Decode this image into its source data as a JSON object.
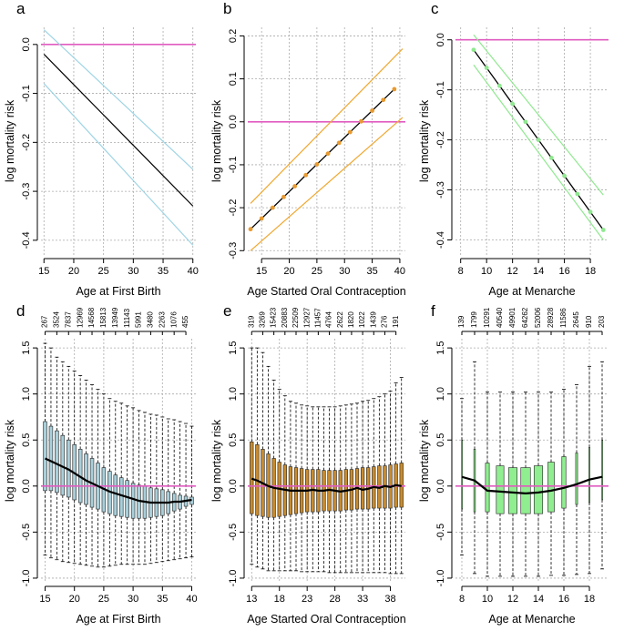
{
  "chart_data": [
    {
      "type": "line",
      "panel": "a",
      "xlabel": "Age at First Birth",
      "ylabel": "log mortality risk",
      "xlim": [
        14.5,
        40.5
      ],
      "ylim": [
        -0.43,
        0.035
      ],
      "xticks": [
        15,
        20,
        25,
        30,
        35,
        40
      ],
      "yticks": [
        {
          "value": 0,
          "label": "0.0"
        },
        -0.1,
        -0.2,
        -0.3,
        -0.4
      ],
      "grid": true,
      "hline": 0,
      "hline_color": "#e05cc0",
      "series": [
        {
          "x": [
            15,
            20,
            25,
            30,
            35,
            40
          ],
          "values": [
            0.03,
            -0.027,
            -0.084,
            -0.141,
            -0.198,
            -0.255
          ],
          "color": "#9fd4e4"
        },
        {
          "x": [
            15,
            20,
            25,
            30,
            35,
            40
          ],
          "values": [
            -0.08,
            -0.146,
            -0.212,
            -0.278,
            -0.344,
            -0.41
          ],
          "color": "#9fd4e4"
        },
        {
          "x": [
            15,
            20,
            25,
            30,
            35,
            40
          ],
          "values": [
            -0.02,
            -0.082,
            -0.144,
            -0.206,
            -0.268,
            -0.33
          ],
          "color": "#000000"
        }
      ]
    },
    {
      "type": "line",
      "panel": "b",
      "xlabel": "Age Started Oral Contraception",
      "ylabel": "log mortality risk",
      "xlim": [
        12.5,
        41
      ],
      "ylim": [
        -0.31,
        0.22
      ],
      "xticks": [
        15,
        20,
        25,
        30,
        35,
        40
      ],
      "yticks": [
        {
          "value": 0.2,
          "label": "0.2"
        },
        0.1,
        {
          "value": 0,
          "label": "0.0"
        },
        -0.1,
        -0.2,
        -0.3
      ],
      "grid": true,
      "hline": 0,
      "hline_color": "#e05cc0",
      "series": [
        {
          "x": [
            13,
            40.5
          ],
          "values": [
            -0.19,
            0.17
          ],
          "color": "#f0a830"
        },
        {
          "x": [
            13,
            40.5
          ],
          "values": [
            -0.3,
            0.01
          ],
          "color": "#f0a830"
        },
        {
          "x": [
            13,
            15,
            17,
            19,
            21,
            23,
            25,
            27,
            29,
            31,
            33,
            35,
            37,
            39
          ],
          "values": [
            -0.25,
            -0.225,
            -0.2,
            -0.175,
            -0.15,
            -0.124,
            -0.099,
            -0.074,
            -0.049,
            -0.024,
            0.001,
            0.026,
            0.051,
            0.076
          ],
          "color": "#000000",
          "marker_color": "#e89a30"
        }
      ]
    },
    {
      "type": "line",
      "panel": "c",
      "xlabel": "Age at Menarche",
      "ylabel": "log mortality risk",
      "xlim": [
        7.6,
        19.4
      ],
      "ylim": [
        -0.43,
        0.025
      ],
      "xticks": [
        8,
        10,
        12,
        14,
        16,
        18
      ],
      "yticks": [
        {
          "value": 0,
          "label": "0.0"
        },
        -0.1,
        -0.2,
        -0.3,
        -0.4
      ],
      "grid": true,
      "hline": 0,
      "hline_color": "#e05cc0",
      "series": [
        {
          "x": [
            9,
            19
          ],
          "values": [
            0.01,
            -0.31
          ],
          "color": "#90e890"
        },
        {
          "x": [
            9,
            19
          ],
          "values": [
            -0.05,
            -0.4
          ],
          "color": "#90e890"
        },
        {
          "x": [
            9,
            10,
            11,
            12,
            13,
            14,
            15,
            16,
            17,
            18,
            19
          ],
          "values": [
            -0.02,
            -0.056,
            -0.092,
            -0.128,
            -0.164,
            -0.2,
            -0.236,
            -0.272,
            -0.308,
            -0.344,
            -0.38
          ],
          "color": "#000000",
          "marker_color": "#90e890"
        }
      ]
    },
    {
      "type": "box",
      "panel": "d",
      "xlabel": "Age at First Birth",
      "ylabel": "log mortality risk",
      "xlim": [
        14.3,
        40.7
      ],
      "ylim": [
        -1.05,
        1.6
      ],
      "xticks": [
        15,
        20,
        25,
        30,
        35,
        40
      ],
      "yticks": [
        {
          "value": -1,
          "label": "-1.0"
        },
        -0.5,
        {
          "value": 0,
          "label": "0.0"
        },
        0.5,
        {
          "value": 1,
          "label": "1.0"
        },
        1.5
      ],
      "grid": true,
      "hline": 0,
      "hline_color": "#e05cc0",
      "color": "#a9cfda",
      "x": [
        15,
        16,
        17,
        18,
        19,
        20,
        21,
        22,
        23,
        24,
        25,
        26,
        27,
        28,
        29,
        30,
        31,
        32,
        33,
        34,
        35,
        36,
        37,
        38,
        39,
        40
      ],
      "median": [
        0.3,
        0.27,
        0.24,
        0.21,
        0.18,
        0.14,
        0.1,
        0.06,
        0.03,
        0.0,
        -0.03,
        -0.06,
        -0.08,
        -0.1,
        -0.12,
        -0.14,
        -0.16,
        -0.17,
        -0.18,
        -0.18,
        -0.18,
        -0.18,
        -0.17,
        -0.17,
        -0.16,
        -0.15
      ],
      "q1": [
        -0.05,
        -0.05,
        -0.07,
        -0.1,
        -0.12,
        -0.15,
        -0.18,
        -0.2,
        -0.23,
        -0.25,
        -0.28,
        -0.3,
        -0.32,
        -0.33,
        -0.34,
        -0.35,
        -0.35,
        -0.35,
        -0.34,
        -0.33,
        -0.32,
        -0.3,
        -0.27,
        -0.25,
        -0.22,
        -0.2
      ],
      "q3": [
        0.7,
        0.65,
        0.6,
        0.55,
        0.5,
        0.45,
        0.4,
        0.35,
        0.3,
        0.25,
        0.2,
        0.16,
        0.12,
        0.09,
        0.06,
        0.03,
        0.01,
        0.0,
        -0.02,
        -0.03,
        -0.04,
        -0.06,
        -0.08,
        -0.1,
        -0.11,
        -0.12
      ],
      "whisker_low": [
        -0.75,
        -0.78,
        -0.8,
        -0.82,
        -0.83,
        -0.84,
        -0.85,
        -0.86,
        -0.87,
        -0.88,
        -0.88,
        -0.87,
        -0.86,
        -0.85,
        -0.85,
        -0.85,
        -0.85,
        -0.85,
        -0.84,
        -0.83,
        -0.82,
        -0.81,
        -0.8,
        -0.79,
        -0.78,
        -0.77
      ],
      "whisker_high": [
        1.55,
        1.5,
        1.4,
        1.35,
        1.3,
        1.25,
        1.2,
        1.15,
        1.1,
        1.05,
        1.0,
        0.95,
        0.92,
        0.9,
        0.87,
        0.85,
        0.82,
        0.8,
        0.78,
        0.77,
        0.75,
        0.73,
        0.72,
        0.7,
        0.68,
        0.65
      ],
      "n_x": [
        15,
        17,
        19,
        21,
        23,
        25,
        27,
        29,
        31,
        33,
        35,
        37,
        39
      ],
      "n": [
        267,
        3524,
        7837,
        12969,
        14568,
        15813,
        13949,
        11143,
        5991,
        3480,
        2263,
        1076,
        455
      ]
    },
    {
      "type": "box",
      "panel": "e",
      "xlabel": "Age Started Oral Contraception",
      "ylabel": "log mortality risk",
      "xlim": [
        12.3,
        40.7
      ],
      "ylim": [
        -1.05,
        1.6
      ],
      "xticks": [
        13,
        18,
        23,
        28,
        33,
        38
      ],
      "yticks": [
        {
          "value": -1,
          "label": "-1.0"
        },
        -0.5,
        {
          "value": 0,
          "label": "0.0"
        },
        0.5,
        {
          "value": 1,
          "label": "1.0"
        },
        1.5
      ],
      "grid": true,
      "hline": 0,
      "hline_color": "#e05cc0",
      "color": "#c98b2e",
      "x": [
        13,
        14,
        15,
        16,
        17,
        18,
        19,
        20,
        21,
        22,
        23,
        24,
        25,
        26,
        27,
        28,
        29,
        30,
        31,
        32,
        33,
        34,
        35,
        36,
        37,
        38,
        39,
        40
      ],
      "median": [
        0.08,
        0.06,
        0.03,
        0.0,
        -0.02,
        -0.03,
        -0.04,
        -0.05,
        -0.05,
        -0.05,
        -0.05,
        -0.04,
        -0.05,
        -0.05,
        -0.04,
        -0.05,
        -0.06,
        -0.05,
        -0.04,
        -0.02,
        -0.04,
        -0.03,
        -0.01,
        -0.02,
        0.0,
        -0.01,
        0.01,
        0.0
      ],
      "q1": [
        -0.3,
        -0.32,
        -0.33,
        -0.34,
        -0.34,
        -0.33,
        -0.32,
        -0.31,
        -0.3,
        -0.29,
        -0.28,
        -0.28,
        -0.28,
        -0.27,
        -0.27,
        -0.27,
        -0.27,
        -0.26,
        -0.26,
        -0.25,
        -0.25,
        -0.25,
        -0.24,
        -0.24,
        -0.24,
        -0.24,
        -0.23,
        -0.23
      ],
      "q3": [
        0.48,
        0.45,
        0.4,
        0.35,
        0.3,
        0.26,
        0.23,
        0.21,
        0.2,
        0.19,
        0.18,
        0.18,
        0.18,
        0.17,
        0.17,
        0.17,
        0.17,
        0.18,
        0.18,
        0.19,
        0.2,
        0.2,
        0.21,
        0.22,
        0.22,
        0.23,
        0.24,
        0.25
      ],
      "whisker_low": [
        -0.85,
        -0.88,
        -0.9,
        -0.92,
        -0.92,
        -0.92,
        -0.92,
        -0.92,
        -0.92,
        -0.93,
        -0.93,
        -0.93,
        -0.93,
        -0.93,
        -0.94,
        -0.94,
        -0.94,
        -0.94,
        -0.94,
        -0.94,
        -0.94,
        -0.94,
        -0.94,
        -0.94,
        -0.94,
        -0.95,
        -0.95,
        -0.95
      ],
      "whisker_high": [
        1.5,
        1.5,
        1.45,
        1.3,
        1.15,
        1.05,
        0.98,
        0.92,
        0.9,
        0.88,
        0.87,
        0.86,
        0.86,
        0.86,
        0.86,
        0.86,
        0.87,
        0.88,
        0.89,
        0.9,
        0.92,
        0.93,
        0.95,
        0.97,
        1.0,
        1.03,
        1.12,
        1.18
      ],
      "n_x": [
        13,
        15,
        17,
        19,
        21,
        23,
        25,
        27,
        29,
        31,
        33,
        35,
        37,
        39
      ],
      "n": [
        319,
        3269,
        15423,
        20883,
        22509,
        12927,
        11457,
        4764,
        2622,
        1820,
        1022,
        1439,
        276,
        191
      ]
    },
    {
      "type": "box",
      "panel": "f",
      "xlabel": "Age at Menarche",
      "ylabel": "log mortality risk",
      "xlim": [
        7.5,
        19.5
      ],
      "ylim": [
        -1.05,
        1.6
      ],
      "xticks": [
        8,
        10,
        12,
        14,
        16,
        18
      ],
      "yticks": [
        {
          "value": -1,
          "label": "-1.0"
        },
        -0.5,
        {
          "value": 0,
          "label": "0.0"
        },
        0.5,
        {
          "value": 1,
          "label": "1.0"
        },
        1.5
      ],
      "grid": true,
      "hline": 0,
      "hline_color": "#e05cc0",
      "color": "#90ee90",
      "x": [
        8,
        9,
        10,
        11,
        12,
        13,
        14,
        15,
        16,
        17,
        18,
        19
      ],
      "median": [
        0.1,
        0.06,
        -0.05,
        -0.06,
        -0.07,
        -0.08,
        -0.07,
        -0.05,
        -0.02,
        0.02,
        0.07,
        0.1
      ],
      "q1": [
        -0.25,
        -0.28,
        -0.28,
        -0.3,
        -0.3,
        -0.3,
        -0.3,
        -0.28,
        -0.24,
        -0.2,
        -0.18,
        -0.15
      ],
      "q3": [
        0.5,
        0.4,
        0.25,
        0.22,
        0.2,
        0.2,
        0.22,
        0.26,
        0.32,
        0.36,
        0.42,
        0.5
      ],
      "whisker_low": [
        -0.75,
        -0.95,
        -0.98,
        -0.98,
        -0.98,
        -0.98,
        -0.98,
        -0.97,
        -0.97,
        -0.96,
        -0.95,
        -0.9
      ],
      "whisker_high": [
        0.95,
        1.35,
        1.02,
        1.02,
        1.02,
        1.02,
        1.02,
        1.02,
        1.05,
        1.1,
        1.3,
        1.35
      ],
      "n_x": [
        8,
        9,
        10,
        11,
        12,
        13,
        14,
        15,
        16,
        17,
        18,
        19
      ],
      "n": [
        139,
        1799,
        10291,
        40540,
        49901,
        64262,
        52006,
        28928,
        11586,
        2645,
        910,
        203
      ]
    }
  ]
}
